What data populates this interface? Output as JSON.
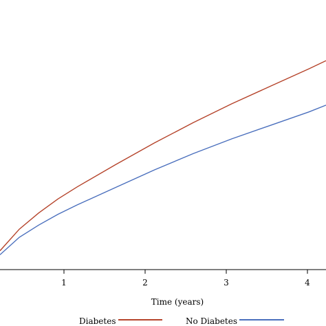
{
  "chart_data": {
    "type": "line",
    "title": "",
    "xlabel": "Time (years)",
    "ylabel": "",
    "xlim": [
      0,
      4.22
    ],
    "ylim": [
      0,
      1
    ],
    "xticks": [
      1,
      2,
      3,
      4
    ],
    "grid": false,
    "legend_position": "bottom",
    "series": [
      {
        "name": "Diabetes",
        "color": "#b5432a",
        "x": [
          0,
          0.25,
          0.5,
          0.75,
          1,
          1.5,
          2,
          2.5,
          3,
          3.5,
          4,
          4.22
        ],
        "y": [
          0.07,
          0.15,
          0.21,
          0.262,
          0.307,
          0.39,
          0.47,
          0.545,
          0.615,
          0.68,
          0.745,
          0.775
        ]
      },
      {
        "name": "No Diabetes",
        "color": "#4a6fbd",
        "x": [
          0,
          0.25,
          0.5,
          0.75,
          1,
          1.5,
          2,
          2.5,
          3,
          3.5,
          4,
          4.22
        ],
        "y": [
          0.055,
          0.12,
          0.165,
          0.205,
          0.24,
          0.305,
          0.37,
          0.43,
          0.485,
          0.535,
          0.585,
          0.61
        ]
      }
    ]
  }
}
